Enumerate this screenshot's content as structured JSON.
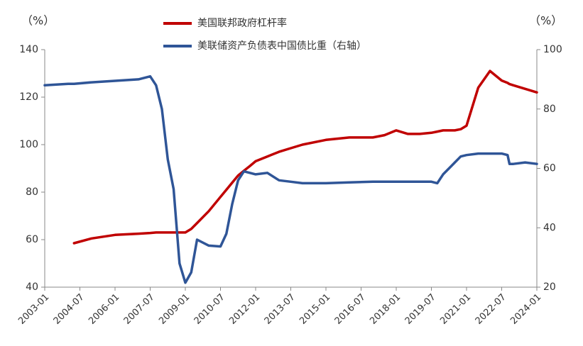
{
  "chart_data": {
    "type": "line",
    "ylabel": "（%）",
    "y2label": "（%）",
    "x": [
      "2003-01",
      "2004-01",
      "2004-04",
      "2005-01",
      "2006-01",
      "2007-01",
      "2007-07",
      "2007-10",
      "2008-01",
      "2008-04",
      "2008-07",
      "2008-10",
      "2009-01",
      "2009-04",
      "2009-07",
      "2010-01",
      "2010-07",
      "2010-10",
      "2011-01",
      "2011-04",
      "2011-07",
      "2011-10",
      "2012-01",
      "2012-07",
      "2013-01",
      "2013-07",
      "2014-01",
      "2015-01",
      "2016-01",
      "2017-01",
      "2017-07",
      "2018-01",
      "2018-07",
      "2019-01",
      "2019-07",
      "2019-10",
      "2020-01",
      "2020-04",
      "2020-07",
      "2020-10",
      "2021-01",
      "2021-07",
      "2022-01",
      "2022-07",
      "2022-10",
      "2022-11",
      "2023-01",
      "2023-07",
      "2024-01"
    ],
    "series": [
      {
        "name": "美国联邦政府杠杆率",
        "color": "#c00000",
        "values": [
          null,
          null,
          58.5,
          60.5,
          62,
          62.5,
          62.8,
          63,
          63,
          63,
          63,
          63,
          63,
          64.5,
          67,
          72,
          78,
          81,
          84,
          87,
          89,
          91,
          93,
          95,
          97,
          98.5,
          100,
          102,
          103,
          103,
          104,
          106,
          104.5,
          104.5,
          105,
          105.5,
          106,
          106,
          106,
          106.5,
          108,
          124,
          131,
          127,
          126,
          125.5,
          125,
          123.5,
          122
        ]
      },
      {
        "name": "美联储资产负债表中国债比重（右轴）",
        "color": "#2f5597",
        "axis": "y2",
        "values": [
          88,
          88.5,
          88.5,
          89,
          89.5,
          90,
          91,
          88,
          80,
          63,
          53,
          28,
          21.5,
          25,
          36,
          34,
          33.7,
          38,
          48,
          56,
          59,
          58.5,
          58,
          58.5,
          56,
          55.5,
          55,
          55,
          55.3,
          55.5,
          55.5,
          55.5,
          55.5,
          55.5,
          55.5,
          55,
          58,
          60,
          62,
          64,
          64.5,
          65,
          65,
          65,
          64.5,
          61.5,
          61.5,
          62,
          61.5
        ]
      }
    ],
    "xlim": [
      "2003-01",
      "2024-01"
    ],
    "xticks": [
      "2003-01",
      "2004-07",
      "2006-01",
      "2007-07",
      "2009-01",
      "2010-07",
      "2012-01",
      "2013-07",
      "2015-01",
      "2016-07",
      "2018-01",
      "2019-07",
      "2021-01",
      "2022-07",
      "2024-01"
    ],
    "ylim": [
      40,
      140
    ],
    "yticks": [
      40,
      60,
      80,
      100,
      120,
      140
    ],
    "y2lim": [
      20,
      100
    ],
    "y2ticks": [
      20,
      40,
      60,
      80,
      100
    ],
    "grid": false
  }
}
